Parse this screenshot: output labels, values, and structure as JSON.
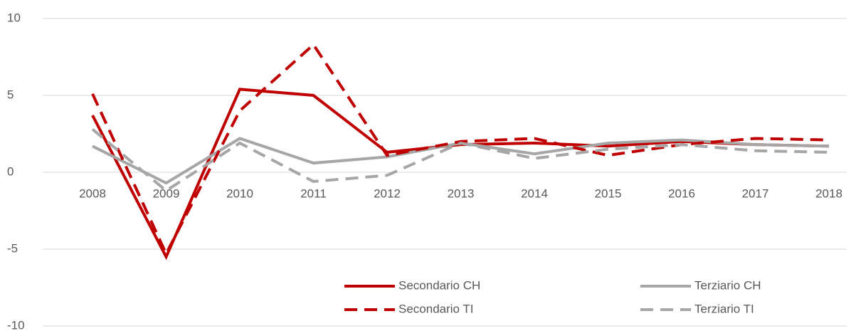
{
  "chart_data": {
    "type": "line",
    "categories": [
      "2008",
      "2009",
      "2010",
      "2011",
      "2012",
      "2013",
      "2014",
      "2015",
      "2016",
      "2017",
      "2018"
    ],
    "series": [
      {
        "name": "Secondario CH",
        "color": "#c00000",
        "dash": false,
        "values": [
          3.7,
          -5.5,
          5.4,
          5.0,
          1.3,
          1.8,
          1.9,
          1.7,
          2.0,
          1.8,
          1.7
        ]
      },
      {
        "name": "Terziario CH",
        "color": "#a6a6a6",
        "dash": false,
        "values": [
          1.7,
          -0.7,
          2.2,
          0.6,
          1.0,
          1.9,
          1.2,
          1.9,
          2.1,
          1.8,
          1.7
        ]
      },
      {
        "name": "Secondario TI",
        "color": "#c00000",
        "dash": true,
        "values": [
          5.1,
          -5.3,
          4.0,
          8.3,
          1.1,
          2.0,
          2.2,
          1.1,
          1.8,
          2.2,
          2.1
        ]
      },
      {
        "name": "Terziario TI",
        "color": "#a6a6a6",
        "dash": true,
        "values": [
          2.8,
          -1.2,
          1.9,
          -0.6,
          -0.2,
          1.9,
          0.9,
          1.5,
          1.8,
          1.4,
          1.3
        ]
      }
    ],
    "ylim": [
      -10,
      10
    ],
    "yticks": [
      -10,
      -5,
      0,
      5,
      10
    ],
    "grid": true,
    "legend": "bottom-right"
  }
}
